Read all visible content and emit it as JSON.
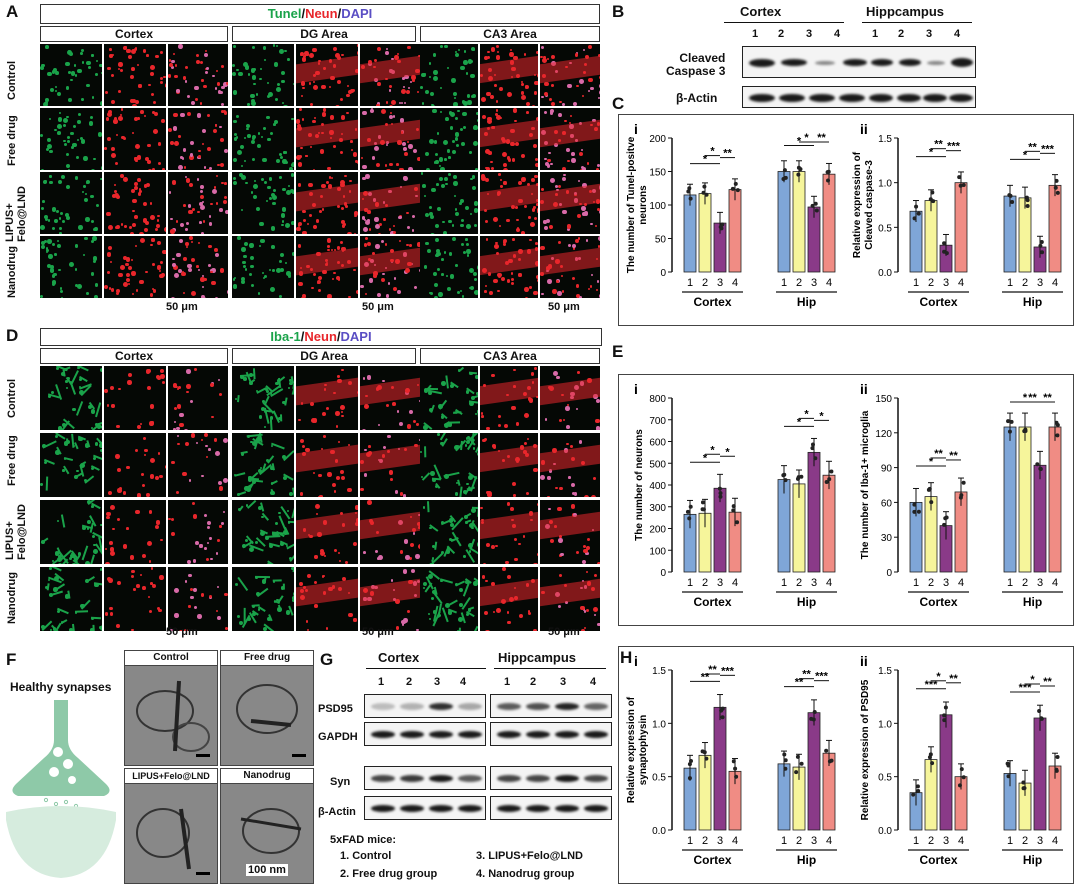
{
  "panels": {
    "A": {
      "letter": "A",
      "title_parts": [
        "Tunel",
        "/",
        "Neun",
        "/",
        "DAPI"
      ],
      "regions": [
        "Cortex",
        "DG Area",
        "CA3 Area"
      ],
      "rows": [
        "Control",
        "Free drug",
        "LIPUS+\nFelo@LND",
        "Nanodrug"
      ],
      "scale": "50 μm"
    },
    "B": {
      "letter": "B",
      "groups": [
        "Cortex",
        "Hippcampus"
      ],
      "lanes": [
        "1",
        "2",
        "3",
        "4",
        "1",
        "2",
        "3",
        "4"
      ],
      "row1": "Cleaved\nCaspase 3",
      "row2": "β-Actin"
    },
    "C": {
      "letter": "C"
    },
    "D": {
      "letter": "D",
      "title_parts": [
        "Iba-1",
        "/",
        "Neun",
        "/",
        "DAPI"
      ],
      "regions": [
        "Cortex",
        "DG Area",
        "CA3 Area"
      ],
      "rows": [
        "Control",
        "Free drug",
        "LIPUS+\nFelo@LND",
        "Nanodrug"
      ],
      "scale": "50 μm"
    },
    "E": {
      "letter": "E"
    },
    "F": {
      "letter": "F",
      "label": "Healthy synapses",
      "em": [
        "Control",
        "Free drug",
        "LIPUS+Felo@LND",
        "Nanodrug"
      ],
      "scale": "100 nm"
    },
    "G": {
      "letter": "G",
      "groups": [
        "Cortex",
        "Hippcampus"
      ],
      "lanes": [
        "1",
        "2",
        "3",
        "4",
        "1",
        "2",
        "3",
        "4"
      ],
      "rows": [
        "PSD95",
        "GAPDH",
        "Syn",
        "β-Actin"
      ],
      "legend_title": "5xFAD mice:",
      "legend": [
        "1. Control",
        "3. LIPUS+Felo@LND",
        "2. Free drug group",
        "4. Nanodrug group"
      ]
    },
    "H": {
      "letter": "H"
    }
  },
  "colors": {
    "g1": "#7fa6d8",
    "g2": "#f6f59b",
    "g3": "#8a3a88",
    "g4": "#f08c84",
    "tunel": "#1aa34a",
    "neun": "#e8262b",
    "dapi": "#5a4ec4"
  },
  "chart_data": [
    {
      "id": "C-i",
      "type": "bar",
      "label": "i",
      "ylabel": "The number of Tunel-positve\nneurons",
      "ylim": [
        0,
        200
      ],
      "yticks": [
        0,
        50,
        100,
        150,
        200
      ],
      "groups": [
        "Cortex",
        "Hip"
      ],
      "categories": [
        "1",
        "2",
        "3",
        "4"
      ],
      "values": [
        [
          115,
          117,
          73,
          123
        ],
        [
          150,
          150,
          97,
          146
        ]
      ],
      "sig": [
        [
          "1",
          "3",
          "*"
        ],
        [
          "2",
          "3",
          "*"
        ],
        [
          "3",
          "4",
          "**"
        ]
      ]
    },
    {
      "id": "C-ii",
      "type": "bar",
      "label": "ii",
      "ylabel": "Relative expression of\nCleaved caspase-3",
      "ylim": [
        0,
        1.5
      ],
      "yticks": [
        "0.0",
        "0.5",
        "1.0",
        "1.5"
      ],
      "groups": [
        "Cortex",
        "Hip"
      ],
      "categories": [
        "1",
        "2",
        "3",
        "4"
      ],
      "values": [
        [
          0.68,
          0.8,
          0.3,
          1.0
        ],
        [
          0.85,
          0.83,
          0.28,
          0.97
        ]
      ],
      "sig": [
        [
          "1",
          "3",
          "*"
        ],
        [
          "2",
          "3",
          "**"
        ],
        [
          "3",
          "4",
          "***"
        ]
      ]
    },
    {
      "id": "E-i",
      "type": "bar",
      "label": "i",
      "ylabel": "The number of neurons",
      "ylim": [
        0,
        800
      ],
      "yticks": [
        0,
        100,
        200,
        300,
        400,
        500,
        600,
        700,
        800
      ],
      "groups": [
        "Cortex",
        "Hip"
      ],
      "categories": [
        "1",
        "2",
        "3",
        "4"
      ],
      "values": [
        [
          265,
          270,
          385,
          275
        ],
        [
          425,
          405,
          550,
          445
        ]
      ],
      "sig": [
        [
          "1",
          "3",
          "*"
        ],
        [
          "2",
          "3",
          "*"
        ],
        [
          "3",
          "4",
          "*"
        ]
      ]
    },
    {
      "id": "E-ii",
      "type": "bar",
      "label": "ii",
      "ylabel": "The number of Iba-1+ microglia",
      "ylim": [
        0,
        150
      ],
      "yticks": [
        0,
        30,
        60,
        90,
        120,
        150
      ],
      "groups": [
        "Cortex",
        "Hip"
      ],
      "categories": [
        "1",
        "2",
        "3",
        "4"
      ],
      "values": [
        [
          60,
          65,
          40,
          69
        ],
        [
          125,
          125,
          92,
          125
        ]
      ],
      "sig": [
        [
          "1",
          "3",
          "*"
        ],
        [
          "2",
          "3",
          "**"
        ],
        [
          "3",
          "4",
          "**"
        ]
      ]
    },
    {
      "id": "H-i",
      "type": "bar",
      "label": "i",
      "ylabel": "Relative expression of\nsynaptophysin",
      "ylim": [
        0,
        1.5
      ],
      "yticks": [
        "0.0",
        "0.5",
        "1.0",
        "1.5"
      ],
      "groups": [
        "Cortex",
        "Hip"
      ],
      "categories": [
        "1",
        "2",
        "3",
        "4"
      ],
      "values": [
        [
          0.58,
          0.7,
          1.15,
          0.55
        ],
        [
          0.62,
          0.59,
          1.1,
          0.72
        ]
      ],
      "sig": [
        [
          "1",
          "3",
          "**"
        ],
        [
          "2",
          "3",
          "**"
        ],
        [
          "3",
          "4",
          "***"
        ]
      ]
    },
    {
      "id": "H-ii",
      "type": "bar",
      "label": "ii",
      "ylabel": "Relative expression of PSD95",
      "ylim": [
        0,
        1.5
      ],
      "yticks": [
        "0.0",
        "0.5",
        "1.0",
        "1.5"
      ],
      "groups": [
        "Cortex",
        "Hip"
      ],
      "categories": [
        "1",
        "2",
        "3",
        "4"
      ],
      "values": [
        [
          0.35,
          0.66,
          1.08,
          0.5
        ],
        [
          0.53,
          0.44,
          1.05,
          0.6
        ]
      ],
      "sig": [
        [
          "1",
          "3",
          "***"
        ],
        [
          "2",
          "3",
          "*"
        ],
        [
          "3",
          "4",
          "**"
        ]
      ]
    }
  ]
}
